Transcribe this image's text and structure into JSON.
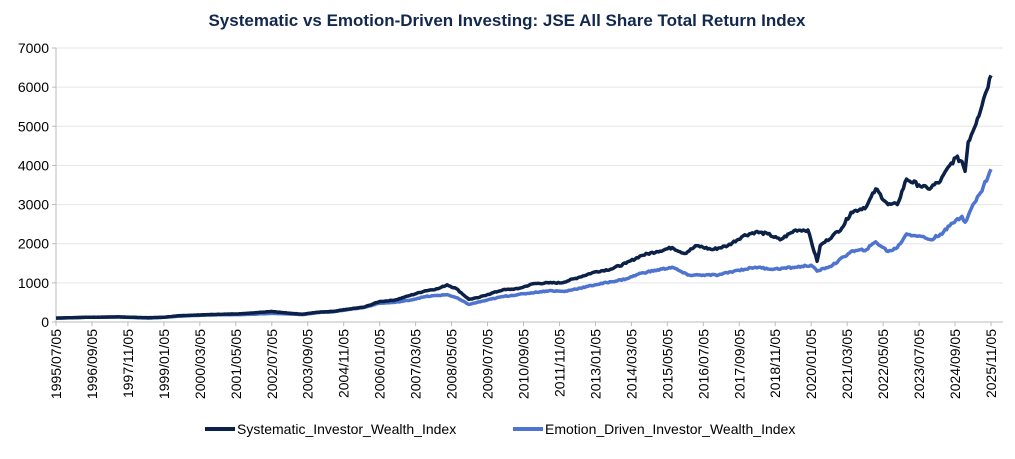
{
  "chart_data": {
    "type": "line",
    "title": "Systematic vs Emotion-Driven Investing: JSE All Share Total Return Index",
    "xlabel": "",
    "ylabel": "",
    "ylim": [
      0,
      7000
    ],
    "yticks": [
      "0",
      "1000",
      "2000",
      "3000",
      "4000",
      "5000",
      "6000",
      "7000"
    ],
    "xlim": [
      1995.51,
      2025.84
    ],
    "xtick_labels": [
      "1995/07/05",
      "1996/09/05",
      "1997/11/05",
      "1999/01/05",
      "2000/03/05",
      "2001/05/05",
      "2002/07/05",
      "2003/09/05",
      "2004/11/05",
      "2006/01/05",
      "2007/03/05",
      "2008/05/05",
      "2009/07/05",
      "2010/09/05",
      "2011/11/05",
      "2013/01/05",
      "2014/03/05",
      "2015/05/05",
      "2016/07/05",
      "2017/09/05",
      "2018/11/05",
      "2020/01/05",
      "2021/03/05",
      "2022/05/05",
      "2023/07/05",
      "2024/09/05",
      "2025/11/05"
    ],
    "grid": true,
    "legend_position": "bottom",
    "series": [
      {
        "name": "Systematic_Investor_Wealth_Index",
        "color": "#0b2147",
        "x": [
          1995.51,
          1996.5,
          1997.5,
          1998.5,
          1999.0,
          1999.5,
          2000.5,
          2001.5,
          2002.0,
          2002.5,
          2003.0,
          2003.5,
          2004.0,
          2004.5,
          2005.0,
          2005.5,
          2006.0,
          2006.5,
          2007.0,
          2007.5,
          2007.9,
          2008.2,
          2008.5,
          2008.9,
          2009.2,
          2009.5,
          2010.0,
          2010.5,
          2011.0,
          2011.5,
          2011.9,
          2012.5,
          2013.0,
          2013.5,
          2014.0,
          2014.5,
          2015.0,
          2015.5,
          2015.9,
          2016.3,
          2016.8,
          2017.3,
          2017.8,
          2018.2,
          2018.6,
          2019.0,
          2019.5,
          2019.9,
          2020.2,
          2020.3,
          2020.7,
          2021.0,
          2021.3,
          2021.8,
          2022.1,
          2022.5,
          2022.8,
          2023.1,
          2023.5,
          2023.8,
          2024.2,
          2024.5,
          2024.7,
          2024.9,
          2025.0,
          2025.1,
          2025.4,
          2025.6,
          2025.84
        ],
        "values": [
          100,
          120,
          130,
          110,
          120,
          160,
          190,
          210,
          240,
          270,
          230,
          200,
          250,
          270,
          330,
          380,
          520,
          560,
          680,
          800,
          850,
          950,
          850,
          580,
          620,
          700,
          820,
          850,
          980,
          1000,
          1000,
          1150,
          1280,
          1350,
          1500,
          1700,
          1800,
          1900,
          1750,
          1950,
          1850,
          1950,
          2200,
          2300,
          2250,
          2100,
          2350,
          2350,
          1550,
          1950,
          2200,
          2400,
          2800,
          2950,
          3400,
          3000,
          3000,
          3650,
          3500,
          3400,
          3600,
          4000,
          4200,
          4100,
          3850,
          4600,
          5200,
          5700,
          6300
        ]
      },
      {
        "name": "Emotion_Driven_Investor_Wealth_Index",
        "color": "#4f74cf",
        "x": [
          1995.51,
          1996.5,
          1997.5,
          1998.5,
          1999.0,
          1999.5,
          2000.5,
          2001.5,
          2002.0,
          2002.5,
          2003.0,
          2003.5,
          2004.0,
          2004.5,
          2005.0,
          2005.5,
          2006.0,
          2006.5,
          2007.0,
          2007.5,
          2008.2,
          2008.5,
          2008.9,
          2009.5,
          2010.0,
          2010.5,
          2011.5,
          2012.0,
          2013.0,
          2014.0,
          2014.5,
          2015.5,
          2016.0,
          2016.5,
          2017.0,
          2017.5,
          2018.2,
          2018.8,
          2019.5,
          2020.0,
          2020.2,
          2020.7,
          2021.3,
          2021.8,
          2022.1,
          2022.5,
          2022.8,
          2023.1,
          2023.5,
          2023.9,
          2024.3,
          2024.7,
          2024.9,
          2025.0,
          2025.2,
          2025.5,
          2025.84
        ],
        "values": [
          100,
          120,
          130,
          100,
          120,
          150,
          180,
          190,
          200,
          220,
          210,
          190,
          240,
          260,
          320,
          370,
          480,
          500,
          560,
          650,
          700,
          620,
          450,
          560,
          650,
          700,
          800,
          780,
          950,
          1100,
          1250,
          1400,
          1200,
          1200,
          1200,
          1300,
          1400,
          1350,
          1400,
          1450,
          1300,
          1450,
          1800,
          1850,
          2050,
          1800,
          1900,
          2250,
          2200,
          2100,
          2300,
          2600,
          2700,
          2550,
          2900,
          3300,
          3900
        ]
      }
    ]
  }
}
